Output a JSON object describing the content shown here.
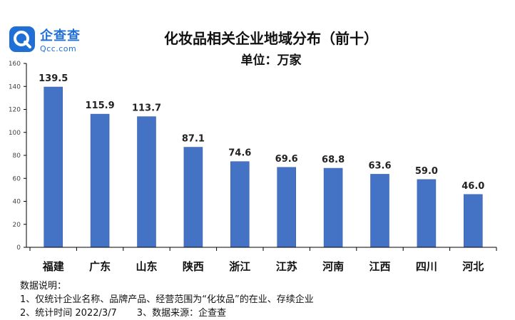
{
  "logo": {
    "cn": "企查查",
    "en": "Qcc.com"
  },
  "colors": {
    "bar": "#4472c4",
    "bar_edge": "#3a62ab",
    "axis": "#000000",
    "brand": "#1f6fd6"
  },
  "chart_data": {
    "type": "bar",
    "title": "化妆品相关企业地域分布（前十）",
    "unit": "单位：万家",
    "xlabel": "",
    "ylabel": "",
    "ylim": [
      0,
      160
    ],
    "yticks": [
      0,
      20,
      40,
      60,
      80,
      100,
      120,
      140,
      160
    ],
    "grid": false,
    "categories": [
      "福建",
      "广东",
      "山东",
      "陕西",
      "浙江",
      "江苏",
      "河南",
      "江西",
      "四川",
      "河北"
    ],
    "values": [
      139.5,
      115.9,
      113.7,
      87.1,
      74.6,
      69.6,
      68.8,
      63.6,
      59.0,
      46.0
    ],
    "value_labels": [
      "139.5",
      "115.9",
      "113.7",
      "87.1",
      "74.6",
      "69.6",
      "68.8",
      "63.6",
      "59.0",
      "46.0"
    ]
  },
  "notes": {
    "heading": "数据说明：",
    "line1": "1、仅统计企业名称、品牌产品、经营范围为“化妆品”的在业、存续企业",
    "line2a": "2、统计时间 2022/3/7",
    "line2b": "3、数据来源：企查查"
  }
}
